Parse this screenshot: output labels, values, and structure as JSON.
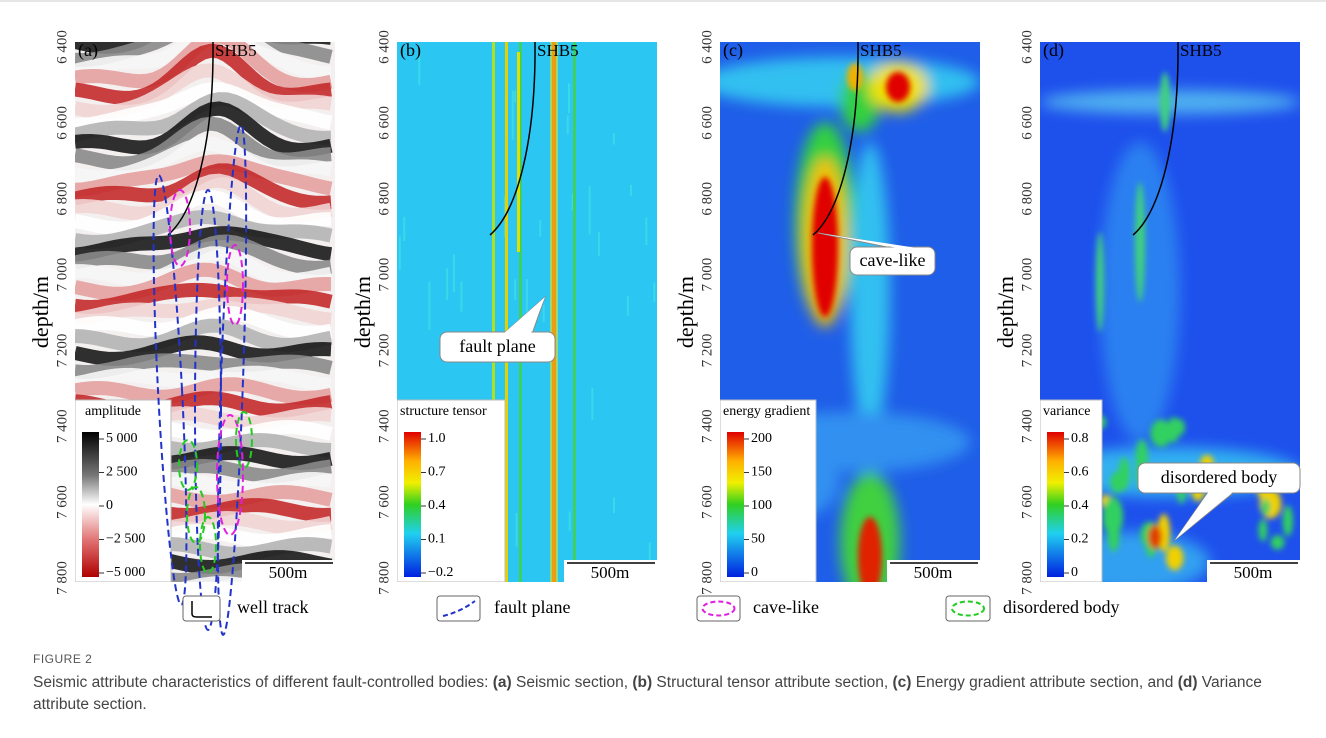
{
  "panels": [
    {
      "label": "(a)",
      "well": "SHB5",
      "y_label": "depth/m",
      "depth_ticks": [
        "6 400",
        "6 600",
        "6 800",
        "7 000",
        "7 200",
        "7 400",
        "7 600",
        "7 800"
      ],
      "colorbar": {
        "title": "amplitude",
        "ticks": [
          "5 000",
          "2 500",
          "0",
          "−2 500",
          "−5 000"
        ]
      },
      "scale": "500m"
    },
    {
      "label": "(b)",
      "well": "SHB5",
      "y_label": "depth/m",
      "depth_ticks": [
        "6 400",
        "6 600",
        "6 800",
        "7 000",
        "7 200",
        "7 400",
        "7 600",
        "7 800"
      ],
      "colorbar": {
        "title": "structure tensor",
        "ticks": [
          "1.0",
          "0.7",
          "0.4",
          "0.1",
          "−0.2"
        ]
      },
      "scale": "500m",
      "annotation": "fault plane"
    },
    {
      "label": "(c)",
      "well": "SHB5",
      "y_label": "depth/m",
      "depth_ticks": [
        "6 400",
        "6 600",
        "6 800",
        "7 000",
        "7 200",
        "7 400",
        "7 600",
        "7 800"
      ],
      "colorbar": {
        "title": "energy gradient",
        "ticks": [
          "200",
          "150",
          "100",
          "50",
          "0"
        ]
      },
      "scale": "500m",
      "annotation": "cave-like"
    },
    {
      "label": "(d)",
      "well": "SHB5",
      "y_label": "depth/m",
      "depth_ticks": [
        "6 400",
        "6 600",
        "6 800",
        "7 000",
        "7 200",
        "7 400",
        "7 600",
        "7 800"
      ],
      "colorbar": {
        "title": "variance",
        "ticks": [
          "0.8",
          "0.6",
          "0.4",
          "0.2",
          "0"
        ]
      },
      "scale": "500m",
      "annotation": "disordered body"
    }
  ],
  "legend": [
    "well track",
    "fault plane",
    "cave-like",
    "disordered body"
  ],
  "caption": {
    "label": "FIGURE 2",
    "parts": [
      {
        "text": "Seismic attribute characteristics of different fault-controlled bodies: "
      },
      {
        "text": "(a)",
        "bold": true
      },
      {
        "text": " Seismic section, "
      },
      {
        "text": "(b)",
        "bold": true
      },
      {
        "text": " Structural tensor attribute section, "
      },
      {
        "text": "(c)",
        "bold": true
      },
      {
        "text": " Energy gradient attribute section, and "
      },
      {
        "text": "(d)",
        "bold": true
      },
      {
        "text": " Variance attribute section."
      }
    ]
  }
}
